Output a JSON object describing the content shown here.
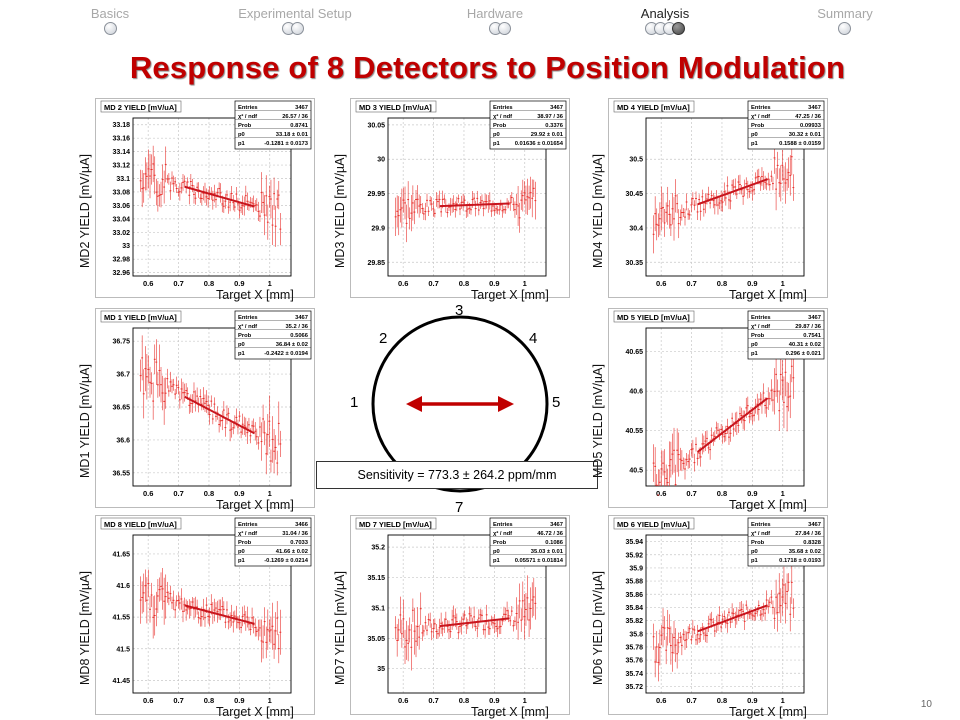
{
  "nav": [
    {
      "label": "Basics",
      "dots": 1,
      "filled": -1,
      "active": false
    },
    {
      "label": "Experimental Setup",
      "dots": 2,
      "filled": -1,
      "active": false
    },
    {
      "label": "Hardware",
      "dots": 2,
      "filled": -1,
      "active": false
    },
    {
      "label": "Analysis",
      "dots": 4,
      "filled": 3,
      "active": true
    },
    {
      "label": "Summary",
      "dots": 1,
      "filled": -1,
      "active": false
    }
  ],
  "title": "Response of 8 Detectors to Position Modulation",
  "page_number": "10",
  "xlabel": "Target X [mm]",
  "stats_labels": [
    "Entries",
    "χ² / ndf",
    "Prob",
    "p0",
    "p1"
  ],
  "diagram": {
    "labels": [
      "1",
      "2",
      "3",
      "4",
      "5",
      "7"
    ],
    "sensitivity": "Sensitivity = 773.3 ± 264.2  ppm/mm",
    "arrow_color": "#c00000"
  },
  "colors": {
    "data": "#e8302c",
    "fit": "#c8141c",
    "title_red": "#c00000"
  },
  "chart_data": [
    {
      "type": "scatter",
      "title": "MD 2 YIELD [mV/uA]",
      "ylabel": "MD2 YIELD [mV/µA]",
      "xticks": [
        0.6,
        0.7,
        0.8,
        0.9,
        1
      ],
      "yticks": [
        32.96,
        32.98,
        33,
        33.02,
        33.04,
        33.06,
        33.08,
        33.1,
        33.12,
        33.14,
        33.16,
        33.18
      ],
      "xlim": [
        0.55,
        1.07
      ],
      "ylim": [
        32.955,
        33.19
      ],
      "fit": {
        "p0": 33.18,
        "p1": -0.1281,
        "range": [
          0.72,
          0.95
        ]
      },
      "stats": [
        "3467",
        "26.57 / 36",
        "0.8741",
        "33.18 ± 0.01",
        "-0.1281 ± 0.0173"
      ],
      "noise": 0.025,
      "seed": 2
    },
    {
      "type": "scatter",
      "title": "MD 3 YIELD [mV/uA]",
      "ylabel": "MD3 YIELD [mV/µA]",
      "xticks": [
        0.6,
        0.7,
        0.8,
        0.9,
        1
      ],
      "yticks": [
        29.85,
        29.9,
        29.95,
        30,
        30.05
      ],
      "xlim": [
        0.55,
        1.07
      ],
      "ylim": [
        29.83,
        30.06
      ],
      "fit": {
        "p0": 29.92,
        "p1": 0.01636,
        "range": [
          0.72,
          0.95
        ]
      },
      "stats": [
        "3467",
        "38.97 / 36",
        "0.3376",
        "29.92 ± 0.01",
        "0.01636 ± 0.01654"
      ],
      "noise": 0.022,
      "seed": 3
    },
    {
      "type": "scatter",
      "title": "MD 4 YIELD [mV/uA]",
      "ylabel": "MD4 YIELD [mV/µA]",
      "xticks": [
        0.6,
        0.7,
        0.8,
        0.9,
        1
      ],
      "yticks": [
        30.35,
        30.4,
        30.45,
        30.5
      ],
      "xlim": [
        0.55,
        1.07
      ],
      "ylim": [
        30.33,
        30.56
      ],
      "fit": {
        "p0": 30.32,
        "p1": 0.1588,
        "range": [
          0.72,
          0.95
        ]
      },
      "stats": [
        "3467",
        "47.25 / 36",
        "0.09933",
        "30.32 ± 0.01",
        "0.1588 ± 0.0159"
      ],
      "noise": 0.025,
      "seed": 4
    },
    {
      "type": "scatter",
      "title": "MD 1 YIELD [mV/uA]",
      "ylabel": "MD1 YIELD [mV/µA]",
      "xticks": [
        0.6,
        0.7,
        0.8,
        0.9,
        1
      ],
      "yticks": [
        36.55,
        36.6,
        36.65,
        36.7,
        36.75
      ],
      "xlim": [
        0.55,
        1.07
      ],
      "ylim": [
        36.53,
        36.77
      ],
      "fit": {
        "p0": 36.84,
        "p1": -0.2422,
        "range": [
          0.72,
          0.95
        ]
      },
      "stats": [
        "3467",
        "35.2 / 36",
        "0.5066",
        "36.84 ± 0.02",
        "-0.2422 ± 0.0194"
      ],
      "noise": 0.03,
      "seed": 1
    },
    {
      "type": "scatter",
      "title": "MD 5 YIELD [mV/uA]",
      "ylabel": "MD5 YIELD [mV/µA]",
      "xticks": [
        0.6,
        0.7,
        0.8,
        0.9,
        1
      ],
      "yticks": [
        40.5,
        40.55,
        40.6,
        40.65
      ],
      "xlim": [
        0.55,
        1.07
      ],
      "ylim": [
        40.48,
        40.68
      ],
      "fit": {
        "p0": 40.31,
        "p1": 0.296,
        "range": [
          0.72,
          0.95
        ]
      },
      "stats": [
        "3467",
        "29.87 / 36",
        "0.7541",
        "40.31 ± 0.02",
        "0.296 ± 0.021"
      ],
      "noise": 0.025,
      "seed": 5
    },
    {
      "type": "scatter",
      "title": "MD 8 YIELD [mV/uA]",
      "ylabel": "MD8 YIELD [mV/µA]",
      "xticks": [
        0.6,
        0.7,
        0.8,
        0.9,
        1
      ],
      "yticks": [
        41.45,
        41.5,
        41.55,
        41.6,
        41.65
      ],
      "xlim": [
        0.55,
        1.07
      ],
      "ylim": [
        41.43,
        41.68
      ],
      "fit": {
        "p0": 41.66,
        "p1": -0.1269,
        "range": [
          0.72,
          0.95
        ]
      },
      "stats": [
        "3466",
        "31.04 / 36",
        "0.7033",
        "41.66 ± 0.02",
        "-0.1269 ± 0.0214"
      ],
      "noise": 0.03,
      "seed": 8
    },
    {
      "type": "scatter",
      "title": "MD 7 YIELD [mV/uA]",
      "ylabel": "MD7 YIELD [mV/µA]",
      "xticks": [
        0.6,
        0.7,
        0.8,
        0.9,
        1
      ],
      "yticks": [
        35,
        35.05,
        35.1,
        35.15,
        35.2
      ],
      "xlim": [
        0.55,
        1.07
      ],
      "ylim": [
        34.96,
        35.22
      ],
      "fit": {
        "p0": 35.03,
        "p1": 0.05571,
        "range": [
          0.72,
          0.95
        ]
      },
      "stats": [
        "3467",
        "46.72 / 36",
        "0.1086",
        "35.03 ± 0.01",
        "0.05571 ± 0.01814"
      ],
      "noise": 0.03,
      "seed": 7
    },
    {
      "type": "scatter",
      "title": "MD 6 YIELD [mV/uA]",
      "ylabel": "MD6 YIELD [mV/µA]",
      "xticks": [
        0.6,
        0.7,
        0.8,
        0.9,
        1
      ],
      "yticks": [
        35.72,
        35.74,
        35.76,
        35.78,
        35.8,
        35.82,
        35.84,
        35.86,
        35.88,
        35.9,
        35.92,
        35.94
      ],
      "xlim": [
        0.55,
        1.07
      ],
      "ylim": [
        35.71,
        35.95
      ],
      "fit": {
        "p0": 35.68,
        "p1": 0.1718,
        "range": [
          0.72,
          0.95
        ]
      },
      "stats": [
        "3467",
        "27.84 / 36",
        "0.8328",
        "35.68 ± 0.02",
        "0.1718 ± 0.0193"
      ],
      "noise": 0.025,
      "seed": 6
    }
  ]
}
